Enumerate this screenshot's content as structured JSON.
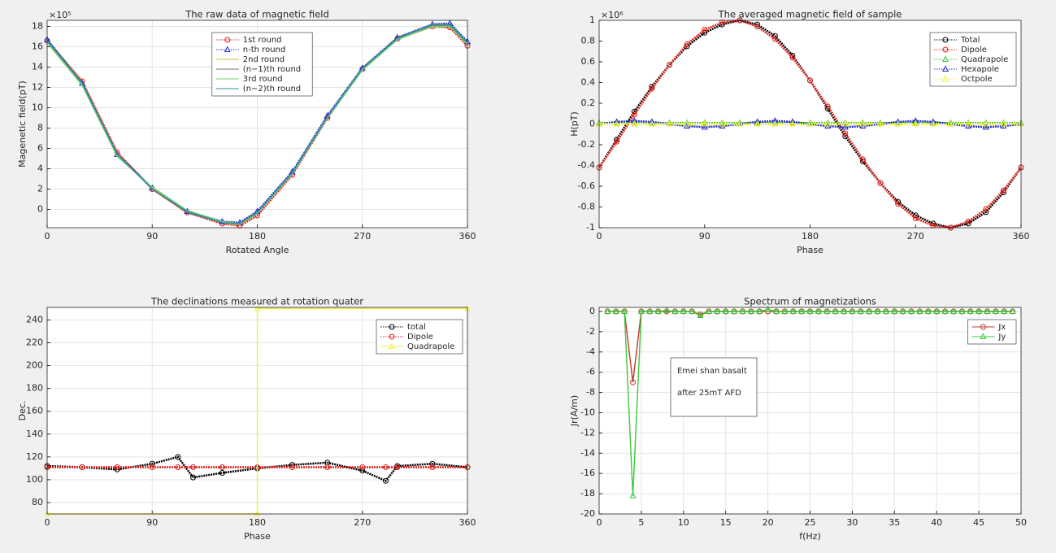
{
  "chart_data": [
    {
      "type": "line",
      "title": "The raw data of magnetic field",
      "xlabel": "Rotated Angle",
      "ylabel": "Magenetic field(pT)",
      "y_exponent": "×10⁵",
      "x": [
        0,
        30,
        60,
        90,
        120,
        150,
        165,
        180,
        210,
        240,
        270,
        300,
        330,
        345,
        360
      ],
      "xlim": [
        0,
        360
      ],
      "xticks": [
        0,
        90,
        180,
        270,
        360
      ],
      "ylim": [
        -1.8,
        18.6
      ],
      "yticks": [
        0,
        2,
        4,
        6,
        8,
        10,
        12,
        14,
        16,
        18
      ],
      "grid": true,
      "legend": "upper center",
      "series": [
        {
          "name": "1st round",
          "color": "#e0201b",
          "marker": "circle",
          "linestyle": "dotted",
          "values": [
            16.6,
            12.6,
            5.6,
            2.0,
            -0.3,
            -1.4,
            -1.6,
            -0.6,
            3.4,
            9.0,
            13.8,
            16.8,
            18.0,
            17.9,
            16.1
          ]
        },
        {
          "name": "n-th round",
          "color": "#1f2bd0",
          "marker": "triangle",
          "linestyle": "dotted",
          "values": [
            16.7,
            12.4,
            5.4,
            2.1,
            -0.2,
            -1.2,
            -1.3,
            -0.2,
            3.7,
            9.2,
            13.9,
            16.9,
            18.2,
            18.3,
            16.5
          ]
        },
        {
          "name": "2nd round",
          "color": "#c9c23a",
          "marker": "none",
          "linestyle": "solid",
          "values": [
            16.5,
            12.3,
            5.3,
            2.1,
            -0.2,
            -1.3,
            -1.5,
            -0.4,
            3.5,
            9.0,
            13.8,
            16.8,
            18.1,
            18.0,
            16.3
          ]
        },
        {
          "name": "(n−1)th round",
          "color": "#707070",
          "marker": "none",
          "linestyle": "solid",
          "values": [
            16.6,
            12.5,
            5.5,
            2.0,
            -0.3,
            -1.3,
            -1.4,
            -0.3,
            3.6,
            9.1,
            13.8,
            16.9,
            18.1,
            18.1,
            16.4
          ]
        },
        {
          "name": "3rd round",
          "color": "#6cd36c",
          "marker": "none",
          "linestyle": "solid",
          "values": [
            16.4,
            12.2,
            5.2,
            2.2,
            -0.1,
            -1.2,
            -1.4,
            -0.4,
            3.5,
            9.0,
            13.7,
            16.7,
            18.0,
            18.0,
            16.2
          ]
        },
        {
          "name": "(n−2)th round",
          "color": "#2a8fa0",
          "marker": "none",
          "linestyle": "solid",
          "values": [
            16.6,
            12.4,
            5.4,
            2.0,
            -0.2,
            -1.3,
            -1.4,
            -0.3,
            3.6,
            9.1,
            13.9,
            16.8,
            18.2,
            18.2,
            16.4
          ]
        }
      ]
    },
    {
      "type": "line",
      "title": "The averaged magnetic field of sample",
      "xlabel": "Phase",
      "ylabel": "H(pT)",
      "y_exponent": "×10⁶",
      "x": [
        0,
        15,
        30,
        45,
        60,
        75,
        90,
        105,
        120,
        135,
        150,
        165,
        180,
        195,
        210,
        225,
        240,
        255,
        270,
        285,
        300,
        315,
        330,
        345,
        360
      ],
      "xlim": [
        0,
        360
      ],
      "xticks": [
        0,
        90,
        180,
        270,
        360
      ],
      "ylim": [
        -1,
        1
      ],
      "yticks": [
        -1,
        -0.8,
        -0.6,
        -0.4,
        -0.2,
        0,
        0.2,
        0.4,
        0.6,
        0.8,
        1
      ],
      "grid": false,
      "legend": "upper right",
      "series": [
        {
          "name": "Total",
          "color": "#000000",
          "marker": "circle",
          "linestyle": "dotted",
          "values": [
            -0.42,
            -0.15,
            0.12,
            0.36,
            0.57,
            0.75,
            0.88,
            0.96,
            1.0,
            0.96,
            0.85,
            0.66,
            0.42,
            0.15,
            -0.12,
            -0.36,
            -0.57,
            -0.75,
            -0.88,
            -0.96,
            -1.0,
            -0.96,
            -0.85,
            -0.66,
            -0.42
          ]
        },
        {
          "name": "Dipole",
          "color": "#e0201b",
          "marker": "circle",
          "linestyle": "dotted",
          "values": [
            -0.42,
            -0.17,
            0.09,
            0.34,
            0.57,
            0.77,
            0.91,
            0.98,
            1.0,
            0.94,
            0.82,
            0.64,
            0.42,
            0.17,
            -0.09,
            -0.34,
            -0.57,
            -0.77,
            -0.91,
            -0.98,
            -1.0,
            -0.94,
            -0.82,
            -0.64,
            -0.42
          ]
        },
        {
          "name": "Quadrapole",
          "color": "#3cc83c",
          "marker": "triangle",
          "linestyle": "dotted",
          "values": [
            0.01,
            0.01,
            0.01,
            0.01,
            0.01,
            0.01,
            0.01,
            0.01,
            0.01,
            0.01,
            0.01,
            0.01,
            0.01,
            0.01,
            0.01,
            0.01,
            0.01,
            0.01,
            0.01,
            0.01,
            0.01,
            0.01,
            0.01,
            0.01,
            0.01
          ]
        },
        {
          "name": "Hexapole",
          "color": "#1f2bd0",
          "marker": "triangle",
          "linestyle": "dotted",
          "values": [
            0,
            0.02,
            0.03,
            0.02,
            0,
            -0.02,
            -0.03,
            -0.02,
            0,
            0.02,
            0.03,
            0.02,
            0,
            -0.02,
            -0.03,
            -0.02,
            0,
            0.02,
            0.03,
            0.02,
            0,
            -0.02,
            -0.03,
            -0.02,
            0
          ]
        },
        {
          "name": "Octpole",
          "color": "#f2f23a",
          "marker": "triangle",
          "linestyle": "dotted",
          "values": [
            0,
            0,
            0,
            0,
            0,
            0,
            0,
            0,
            0,
            0,
            0,
            0,
            0,
            0,
            0,
            0,
            0,
            0,
            0,
            0,
            0,
            0,
            0,
            0,
            0
          ]
        }
      ]
    },
    {
      "type": "line",
      "title": "The declinations measured at rotation quater",
      "xlabel": "Phase",
      "ylabel": "Dec.",
      "x": [
        0,
        30,
        60,
        90,
        112,
        125,
        150,
        180,
        210,
        240,
        270,
        290,
        300,
        330,
        360
      ],
      "xlim": [
        0,
        360
      ],
      "xticks": [
        0,
        90,
        180,
        270,
        360
      ],
      "ylim": [
        70,
        251
      ],
      "yticks": [
        80,
        100,
        120,
        140,
        160,
        180,
        200,
        220,
        240
      ],
      "grid": true,
      "legend": "upper right",
      "series": [
        {
          "name": "total",
          "color": "#000000",
          "marker": "circle",
          "linestyle": "dotted",
          "values": [
            112,
            111,
            109,
            114,
            120,
            102,
            106,
            110,
            113,
            115,
            108,
            99,
            112,
            114,
            111
          ]
        },
        {
          "name": "Dipole",
          "color": "#e0201b",
          "marker": "circle",
          "linestyle": "dotted",
          "values": [
            111,
            111,
            111,
            111,
            111,
            111,
            111,
            111,
            111,
            111,
            111,
            111,
            111,
            111,
            111
          ]
        },
        {
          "name": "Quadrapole",
          "color": "#f2f23a",
          "marker": "triangle",
          "linestyle": "solid",
          "x": [
            0,
            180,
            180,
            360
          ],
          "values": [
            70,
            70,
            250,
            250
          ]
        }
      ]
    },
    {
      "type": "line",
      "title": "Spectrum of magnetizations",
      "xlabel": "f(Hz)",
      "ylabel": "Jr(A/m)",
      "annotations": [
        "Emei shan basalt",
        "after 25mT AFD"
      ],
      "x": [
        1,
        2,
        3,
        4,
        5,
        6,
        7,
        8,
        9,
        10,
        11,
        12,
        13,
        14,
        15,
        16,
        17,
        18,
        19,
        20,
        21,
        22,
        23,
        24,
        25,
        26,
        27,
        28,
        29,
        30,
        31,
        32,
        33,
        34,
        35,
        36,
        37,
        38,
        39,
        40,
        41,
        42,
        43,
        44,
        45,
        46,
        47,
        48,
        49
      ],
      "xlim": [
        0,
        50
      ],
      "xticks": [
        0,
        5,
        10,
        15,
        20,
        25,
        30,
        35,
        40,
        45,
        50
      ],
      "ylim": [
        -20,
        0.4
      ],
      "yticks": [
        -20,
        -18,
        -16,
        -14,
        -12,
        -10,
        -8,
        -6,
        -4,
        -2,
        0
      ],
      "grid": true,
      "legend": "upper right",
      "series": [
        {
          "name": "Jx",
          "color": "#c0392b",
          "marker": "circle",
          "linestyle": "solid",
          "values": [
            0,
            0,
            0,
            -7,
            0,
            0,
            0,
            0,
            0,
            0,
            0,
            -0.3,
            0,
            0,
            0,
            0,
            0,
            0,
            0,
            0,
            0,
            0,
            0,
            0,
            0,
            0,
            0,
            0,
            0,
            0,
            0,
            0,
            0,
            0,
            0,
            0,
            0,
            0,
            0,
            0,
            0,
            0,
            0,
            0,
            0,
            0,
            0,
            0,
            0
          ]
        },
        {
          "name": "Jy",
          "color": "#3cc83c",
          "marker": "triangle",
          "linestyle": "solid",
          "values": [
            0,
            0,
            0,
            -18.2,
            0,
            0,
            0,
            0.1,
            0,
            0,
            0,
            -0.4,
            0,
            0,
            0,
            0,
            0,
            0,
            0,
            0.2,
            0,
            0,
            0,
            0,
            0,
            0,
            0,
            0,
            0,
            0,
            0,
            0,
            0,
            0,
            0,
            0,
            0,
            0,
            0,
            0,
            0,
            0,
            0,
            0,
            0,
            0,
            0,
            0,
            0
          ]
        }
      ]
    }
  ]
}
